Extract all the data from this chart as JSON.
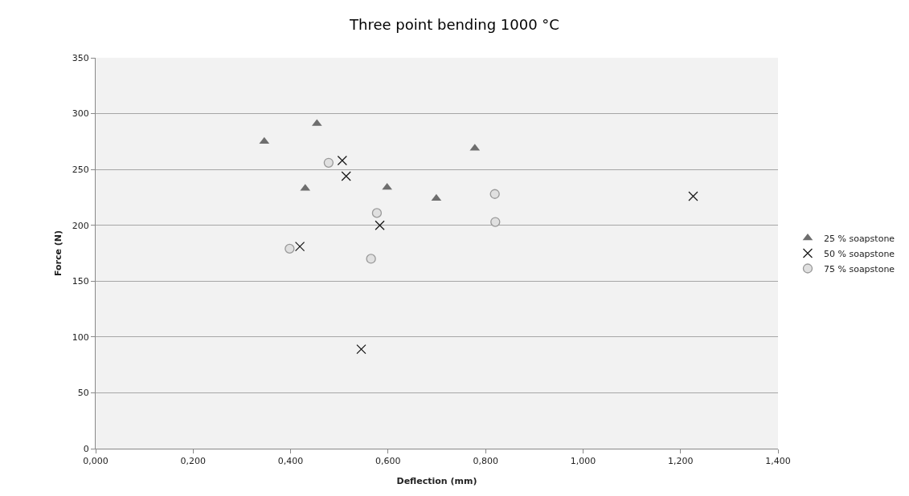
{
  "chart_data": {
    "type": "scatter",
    "title": "Three point bending 1000 °C",
    "xlabel": "Deflection (mm)",
    "ylabel": "Force (N)",
    "xlim": [
      0,
      1.4
    ],
    "xticks": [
      {
        "value": 0,
        "label": "0,000"
      },
      {
        "value": 0.2,
        "label": "0,200"
      },
      {
        "value": 0.4,
        "label": "0,400"
      },
      {
        "value": 0.6,
        "label": "0,600"
      },
      {
        "value": 0.8,
        "label": "0,800"
      },
      {
        "value": 1.0,
        "label": "1,000"
      },
      {
        "value": 1.2,
        "label": "1,200"
      },
      {
        "value": 1.4,
        "label": "1,400"
      }
    ],
    "ylim": [
      0,
      350
    ],
    "yticks": [
      0,
      50,
      100,
      150,
      200,
      250,
      300,
      350
    ],
    "grid": "y",
    "legend": "right",
    "series": [
      {
        "name": "25 % soapstone",
        "color": "#6e6e6e",
        "marker": "triangle",
        "x": [
          0.346,
          0.454,
          0.43,
          0.598,
          0.699,
          0.778
        ],
        "values": [
          275,
          291,
          233,
          234,
          224,
          269
        ]
      },
      {
        "name": "50 % soapstone",
        "color": "#1a1a1a",
        "marker": "cross",
        "x": [
          0.506,
          0.514,
          0.583,
          0.419,
          0.545,
          1.226
        ],
        "values": [
          258,
          244,
          200,
          181,
          89,
          226
        ]
      },
      {
        "name": "75 % soapstone",
        "color": "#e0e0e0",
        "marker": "circle",
        "x": [
          0.478,
          0.577,
          0.398,
          0.565,
          0.819,
          0.82
        ],
        "values": [
          256,
          211,
          179,
          170,
          228,
          203
        ]
      }
    ]
  }
}
